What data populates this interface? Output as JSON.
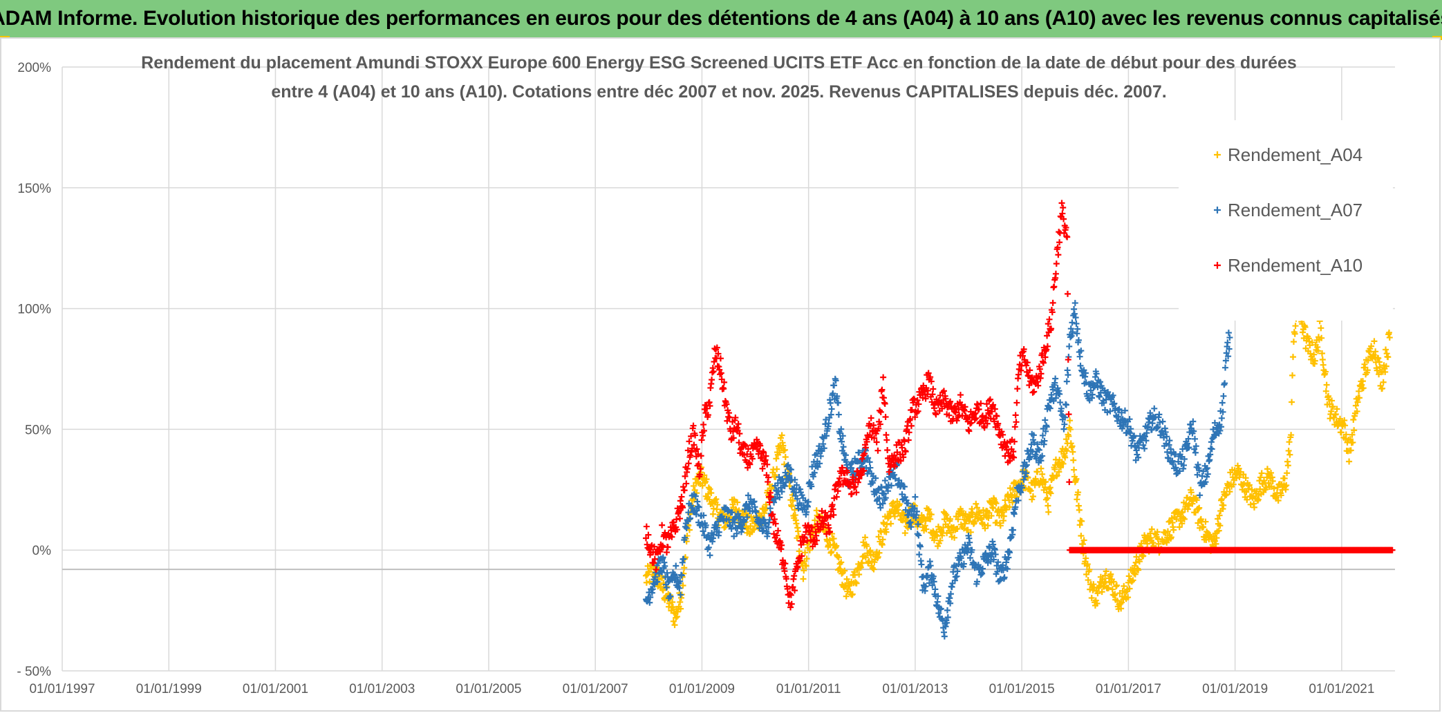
{
  "header": {
    "title": "ADAM Informe. Evolution historique des performances en euros pour des détentions de 4 ans (A04) à 10 ans (A10) avec les revenus connus capitalisés"
  },
  "chart_data": {
    "type": "scatter",
    "title_line1": "Rendement du placement Amundi STOXX Europe 600 Energy ESG Screened UCITS ETF Acc en fonction de la date de début pour des durées",
    "title_line2": "entre 4 (A04) et 10 ans (A10). Cotations entre déc 2007 et nov. 2025. Revenus CAPITALISES depuis déc. 2007.",
    "marker": "+",
    "x_axis": {
      "min": "01/01/1997",
      "max": "31/12/2021",
      "tick_labels": [
        "01/01/1997",
        "01/01/1999",
        "01/01/2001",
        "01/01/2003",
        "01/01/2005",
        "01/01/2007",
        "01/01/2009",
        "01/01/2011",
        "01/01/2013",
        "01/01/2015",
        "01/01/2017",
        "01/01/2019",
        "01/01/2021"
      ],
      "tick_years": [
        1997,
        1999,
        2001,
        2003,
        2005,
        2007,
        2009,
        2011,
        2013,
        2015,
        2017,
        2019,
        2021
      ]
    },
    "y_axis": {
      "min": -50,
      "max": 200,
      "unit": "%",
      "tick_labels": [
        "- 50%",
        "0%",
        "50%",
        "100%",
        "150%",
        "200%"
      ],
      "tick_values": [
        -50,
        0,
        50,
        100,
        150,
        200
      ]
    },
    "legend": {
      "placement": "top-right",
      "entries": [
        "Rendement_A04",
        "Rendement_A07",
        "Rendement_A10"
      ]
    },
    "series": [
      {
        "name": "Rendement_A04",
        "color": "#FFC000",
        "points": [
          [
            2007.95,
            -12
          ],
          [
            2008.1,
            -8
          ],
          [
            2008.25,
            -15
          ],
          [
            2008.4,
            -22
          ],
          [
            2008.5,
            -28
          ],
          [
            2008.6,
            -20
          ],
          [
            2008.7,
            2
          ],
          [
            2008.8,
            18
          ],
          [
            2008.9,
            28
          ],
          [
            2009.0,
            30
          ],
          [
            2009.15,
            22
          ],
          [
            2009.3,
            15
          ],
          [
            2009.45,
            12
          ],
          [
            2009.6,
            18
          ],
          [
            2009.75,
            14
          ],
          [
            2009.9,
            9
          ],
          [
            2010.05,
            12
          ],
          [
            2010.2,
            18
          ],
          [
            2010.35,
            30
          ],
          [
            2010.5,
            45
          ],
          [
            2010.6,
            32
          ],
          [
            2010.75,
            12
          ],
          [
            2010.9,
            -8
          ],
          [
            2011.0,
            2
          ],
          [
            2011.15,
            12
          ],
          [
            2011.3,
            8
          ],
          [
            2011.45,
            2
          ],
          [
            2011.6,
            -8
          ],
          [
            2011.75,
            -18
          ],
          [
            2011.9,
            -10
          ],
          [
            2012.05,
            2
          ],
          [
            2012.2,
            -5
          ],
          [
            2012.35,
            4
          ],
          [
            2012.5,
            14
          ],
          [
            2012.65,
            18
          ],
          [
            2012.8,
            10
          ],
          [
            2012.95,
            16
          ],
          [
            2013.1,
            10
          ],
          [
            2013.25,
            14
          ],
          [
            2013.4,
            5
          ],
          [
            2013.55,
            12
          ],
          [
            2013.7,
            8
          ],
          [
            2013.85,
            14
          ],
          [
            2014.0,
            10
          ],
          [
            2014.15,
            16
          ],
          [
            2014.3,
            12
          ],
          [
            2014.45,
            18
          ],
          [
            2014.6,
            12
          ],
          [
            2014.75,
            20
          ],
          [
            2014.9,
            26
          ],
          [
            2015.05,
            30
          ],
          [
            2015.2,
            24
          ],
          [
            2015.35,
            32
          ],
          [
            2015.5,
            20
          ],
          [
            2015.65,
            35
          ],
          [
            2015.8,
            40
          ],
          [
            2015.9,
            52
          ],
          [
            2016.0,
            30
          ],
          [
            2016.1,
            12
          ],
          [
            2016.2,
            -5
          ],
          [
            2016.3,
            -15
          ],
          [
            2016.4,
            -20
          ],
          [
            2016.55,
            -10
          ],
          [
            2016.7,
            -14
          ],
          [
            2016.85,
            -22
          ],
          [
            2017.0,
            -15
          ],
          [
            2017.15,
            -6
          ],
          [
            2017.3,
            2
          ],
          [
            2017.45,
            5
          ],
          [
            2017.6,
            3
          ],
          [
            2017.75,
            8
          ],
          [
            2017.9,
            12
          ],
          [
            2018.05,
            16
          ],
          [
            2018.2,
            22
          ],
          [
            2018.35,
            12
          ],
          [
            2018.5,
            5
          ],
          [
            2018.6,
            2
          ],
          [
            2018.75,
            18
          ],
          [
            2018.9,
            28
          ],
          [
            2019.05,
            32
          ],
          [
            2019.2,
            26
          ],
          [
            2019.35,
            20
          ],
          [
            2019.5,
            28
          ],
          [
            2019.65,
            30
          ],
          [
            2019.8,
            22
          ],
          [
            2019.95,
            28
          ],
          [
            2020.05,
            48
          ],
          [
            2020.1,
            90
          ],
          [
            2020.2,
            100
          ],
          [
            2020.35,
            85
          ],
          [
            2020.5,
            80
          ],
          [
            2020.6,
            92
          ],
          [
            2020.75,
            60
          ],
          [
            2020.9,
            55
          ],
          [
            2021.05,
            50
          ],
          [
            2021.15,
            40
          ],
          [
            2021.3,
            62
          ],
          [
            2021.45,
            75
          ],
          [
            2021.6,
            85
          ],
          [
            2021.75,
            70
          ],
          [
            2021.9,
            88
          ]
        ]
      },
      {
        "name": "Rendement_A07",
        "color": "#2E75B6",
        "points": [
          [
            2007.95,
            -22
          ],
          [
            2008.1,
            -12
          ],
          [
            2008.25,
            -5
          ],
          [
            2008.4,
            -18
          ],
          [
            2008.5,
            -10
          ],
          [
            2008.6,
            -15
          ],
          [
            2008.7,
            12
          ],
          [
            2008.85,
            20
          ],
          [
            2009.0,
            12
          ],
          [
            2009.15,
            2
          ],
          [
            2009.3,
            10
          ],
          [
            2009.45,
            15
          ],
          [
            2009.6,
            10
          ],
          [
            2009.75,
            12
          ],
          [
            2009.9,
            20
          ],
          [
            2010.05,
            12
          ],
          [
            2010.2,
            8
          ],
          [
            2010.35,
            22
          ],
          [
            2010.5,
            28
          ],
          [
            2010.65,
            32
          ],
          [
            2010.8,
            22
          ],
          [
            2010.95,
            18
          ],
          [
            2011.1,
            35
          ],
          [
            2011.25,
            42
          ],
          [
            2011.4,
            58
          ],
          [
            2011.5,
            68
          ],
          [
            2011.6,
            48
          ],
          [
            2011.75,
            30
          ],
          [
            2011.9,
            35
          ],
          [
            2012.05,
            40
          ],
          [
            2012.2,
            28
          ],
          [
            2012.35,
            22
          ],
          [
            2012.5,
            28
          ],
          [
            2012.65,
            32
          ],
          [
            2012.8,
            22
          ],
          [
            2012.9,
            12
          ],
          [
            2013.0,
            20
          ],
          [
            2013.15,
            -15
          ],
          [
            2013.3,
            -8
          ],
          [
            2013.45,
            -25
          ],
          [
            2013.55,
            -32
          ],
          [
            2013.7,
            -12
          ],
          [
            2013.85,
            -5
          ],
          [
            2014.0,
            2
          ],
          [
            2014.15,
            -10
          ],
          [
            2014.3,
            -5
          ],
          [
            2014.45,
            0
          ],
          [
            2014.6,
            -12
          ],
          [
            2014.75,
            -2
          ],
          [
            2014.9,
            22
          ],
          [
            2015.05,
            32
          ],
          [
            2015.2,
            45
          ],
          [
            2015.35,
            38
          ],
          [
            2015.5,
            60
          ],
          [
            2015.65,
            68
          ],
          [
            2015.8,
            50
          ],
          [
            2015.9,
            88
          ],
          [
            2016.0,
            100
          ],
          [
            2016.1,
            80
          ],
          [
            2016.25,
            65
          ],
          [
            2016.4,
            70
          ],
          [
            2016.55,
            62
          ],
          [
            2016.7,
            60
          ],
          [
            2016.85,
            55
          ],
          [
            2017.0,
            52
          ],
          [
            2017.15,
            40
          ],
          [
            2017.3,
            46
          ],
          [
            2017.45,
            55
          ],
          [
            2017.6,
            52
          ],
          [
            2017.75,
            42
          ],
          [
            2017.9,
            35
          ],
          [
            2018.05,
            38
          ],
          [
            2018.2,
            52
          ],
          [
            2018.35,
            25
          ],
          [
            2018.5,
            35
          ],
          [
            2018.6,
            48
          ],
          [
            2018.75,
            55
          ],
          [
            2018.85,
            82
          ],
          [
            2018.9,
            88
          ]
        ]
      },
      {
        "name": "Rendement_A10",
        "color": "#FF0000",
        "points": [
          [
            2007.95,
            8
          ],
          [
            2008.05,
            0
          ],
          [
            2008.15,
            -5
          ],
          [
            2008.25,
            6
          ],
          [
            2008.35,
            2
          ],
          [
            2008.5,
            10
          ],
          [
            2008.65,
            22
          ],
          [
            2008.75,
            40
          ],
          [
            2008.85,
            48
          ],
          [
            2008.95,
            32
          ],
          [
            2009.05,
            55
          ],
          [
            2009.15,
            62
          ],
          [
            2009.25,
            82
          ],
          [
            2009.35,
            75
          ],
          [
            2009.45,
            60
          ],
          [
            2009.55,
            48
          ],
          [
            2009.65,
            52
          ],
          [
            2009.75,
            40
          ],
          [
            2009.9,
            38
          ],
          [
            2010.05,
            42
          ],
          [
            2010.2,
            35
          ],
          [
            2010.35,
            10
          ],
          [
            2010.45,
            2
          ],
          [
            2010.55,
            -5
          ],
          [
            2010.65,
            -22
          ],
          [
            2010.75,
            -12
          ],
          [
            2010.85,
            0
          ],
          [
            2010.95,
            8
          ],
          [
            2011.1,
            5
          ],
          [
            2011.25,
            12
          ],
          [
            2011.4,
            10
          ],
          [
            2011.55,
            28
          ],
          [
            2011.7,
            32
          ],
          [
            2011.8,
            25
          ],
          [
            2011.95,
            30
          ],
          [
            2012.05,
            38
          ],
          [
            2012.15,
            52
          ],
          [
            2012.3,
            45
          ],
          [
            2012.4,
            70
          ],
          [
            2012.5,
            35
          ],
          [
            2012.65,
            40
          ],
          [
            2012.8,
            42
          ],
          [
            2012.95,
            58
          ],
          [
            2013.1,
            62
          ],
          [
            2013.25,
            70
          ],
          [
            2013.4,
            58
          ],
          [
            2013.55,
            62
          ],
          [
            2013.7,
            55
          ],
          [
            2013.85,
            60
          ],
          [
            2014.0,
            52
          ],
          [
            2014.15,
            58
          ],
          [
            2014.3,
            55
          ],
          [
            2014.45,
            60
          ],
          [
            2014.6,
            48
          ],
          [
            2014.75,
            40
          ],
          [
            2014.85,
            42
          ],
          [
            2014.95,
            75
          ],
          [
            2015.05,
            80
          ],
          [
            2015.15,
            70
          ],
          [
            2015.25,
            68
          ],
          [
            2015.35,
            75
          ],
          [
            2015.45,
            85
          ],
          [
            2015.55,
            95
          ],
          [
            2015.65,
            120
          ],
          [
            2015.75,
            140
          ],
          [
            2015.85,
            130
          ],
          [
            2015.9,
            0
          ],
          [
            2016.5,
            0
          ],
          [
            2017.0,
            0
          ],
          [
            2017.5,
            0
          ],
          [
            2018.0,
            0
          ],
          [
            2018.5,
            0
          ],
          [
            2019.0,
            0
          ],
          [
            2019.5,
            0
          ],
          [
            2020.0,
            0
          ],
          [
            2020.5,
            0
          ],
          [
            2021.0,
            0
          ],
          [
            2021.5,
            0
          ],
          [
            2021.95,
            0
          ]
        ]
      }
    ]
  }
}
